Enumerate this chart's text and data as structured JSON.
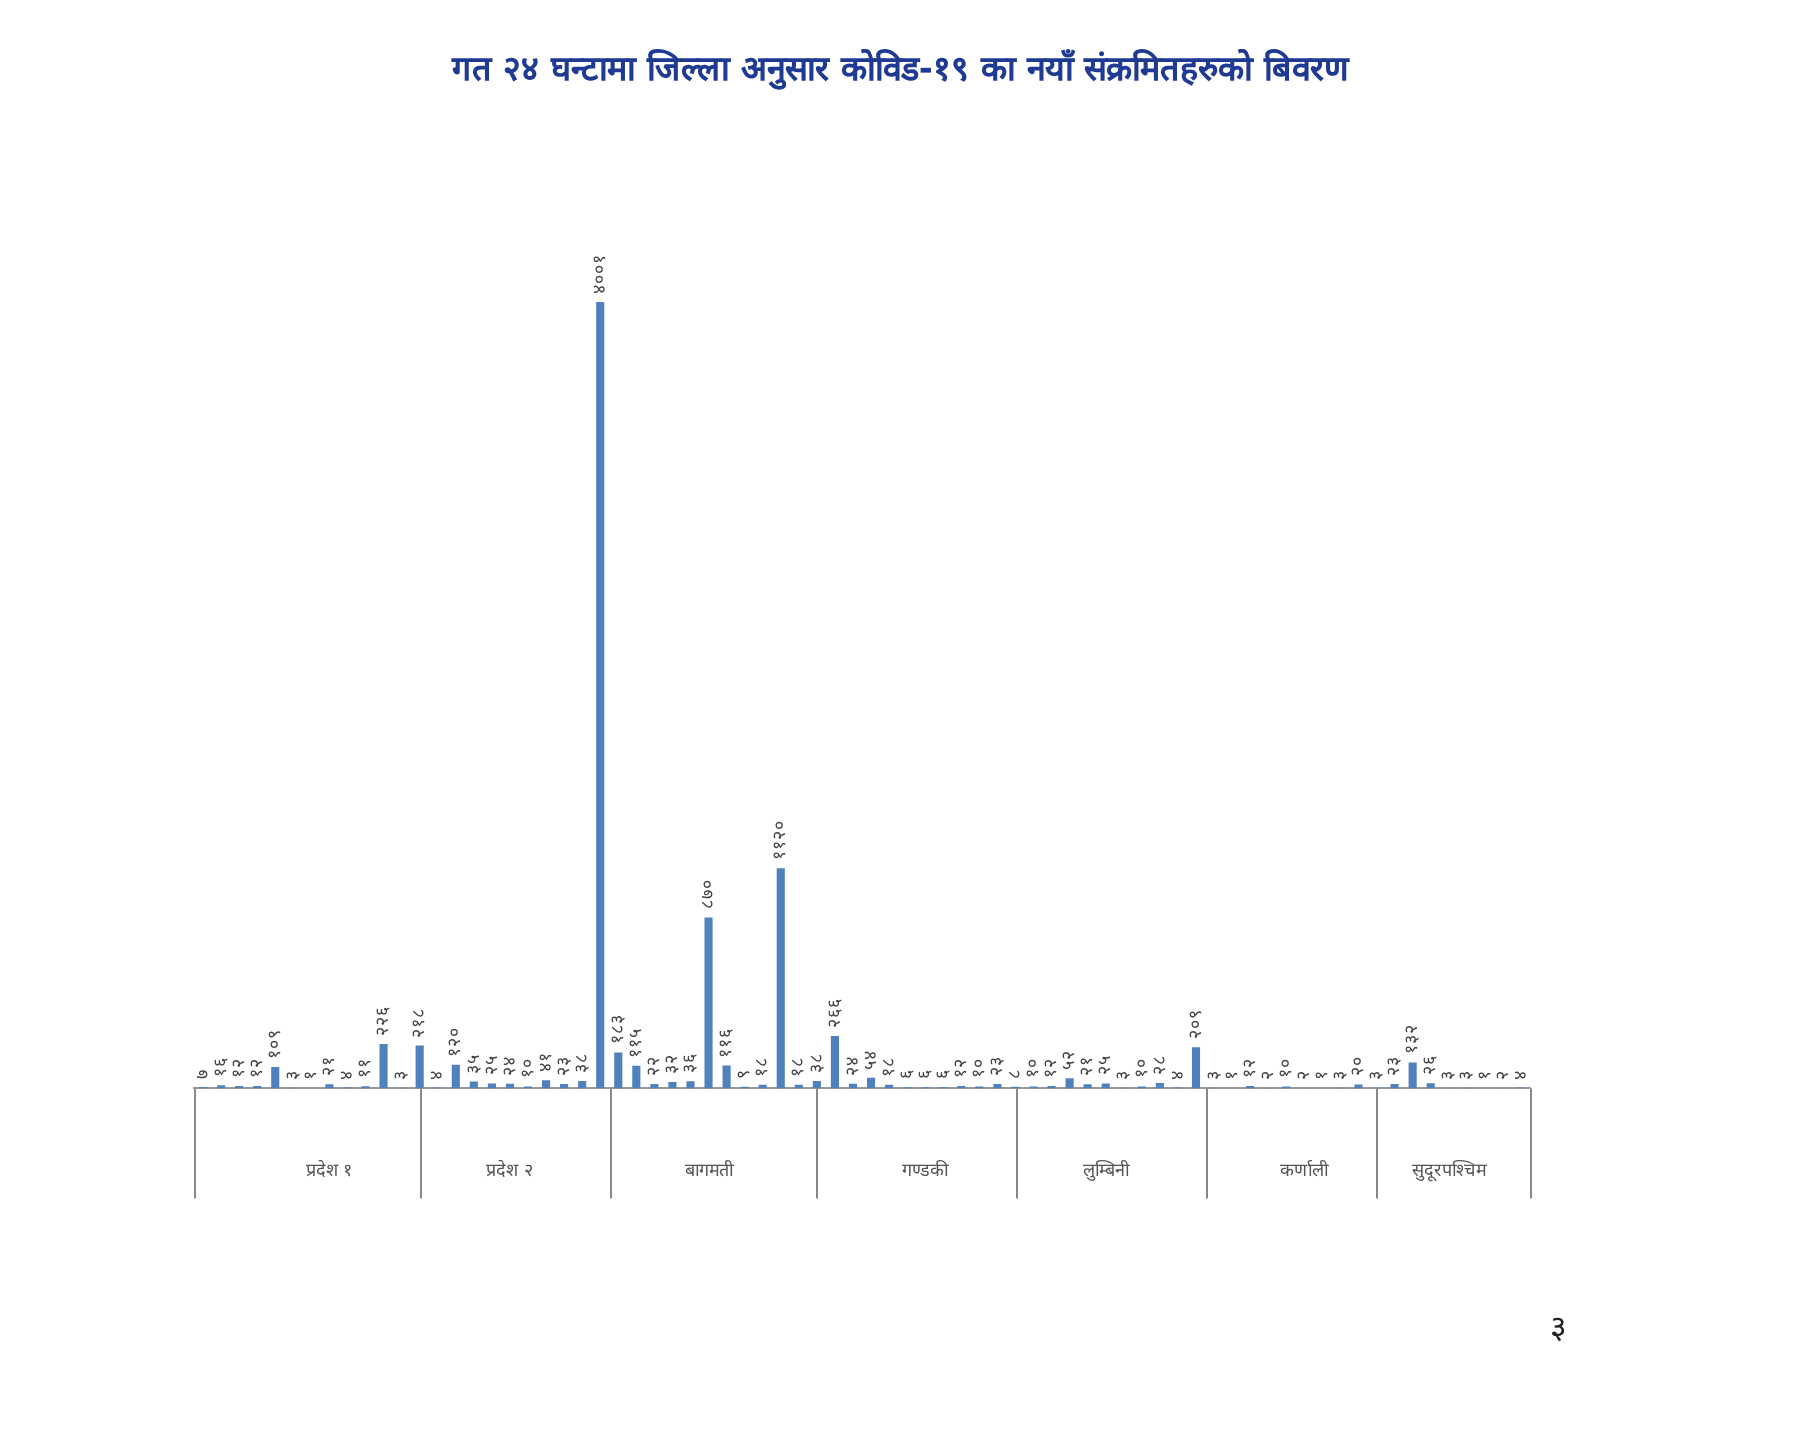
{
  "chart_data": {
    "type": "bar",
    "title": "गत २४ घन्टामा जिल्ला अनुसार कोविड-१९ का नयाँ संक्रमितहरुको बिवरण",
    "categories": [
      null,
      null,
      null,
      null,
      null,
      null,
      null,
      "प्रदेश १",
      null,
      null,
      null,
      null,
      null,
      null,
      null,
      null,
      null,
      "प्रदेश २",
      null,
      null,
      null,
      null,
      null,
      null,
      null,
      null,
      null,
      null,
      "बागमती",
      null,
      null,
      null,
      null,
      null,
      null,
      null,
      null,
      null,
      null,
      null,
      "गण्डकी",
      null,
      null,
      null,
      null,
      null,
      null,
      null,
      null,
      null,
      "लुम्बिनी",
      null,
      null,
      null,
      null,
      null,
      null,
      null,
      null,
      null,
      null,
      "कर्णाली",
      null,
      null,
      null,
      null,
      null,
      null,
      null,
      "सुदूरपश्चिम",
      null,
      null,
      null,
      null
    ],
    "values": [
      7,
      16,
      12,
      12,
      109,
      3,
      1,
      21,
      4,
      11,
      226,
      3,
      218,
      4,
      120,
      35,
      25,
      24,
      10,
      41,
      23,
      38,
      4001,
      183,
      115,
      22,
      32,
      36,
      870,
      116,
      9,
      18,
      1120,
      18,
      38,
      266,
      24,
      54,
      18,
      6,
      6,
      6,
      12,
      10,
      23,
      8,
      10,
      12,
      52,
      21,
      25,
      3,
      10,
      28,
      4,
      209,
      3,
      1,
      12,
      2,
      10,
      2,
      1,
      3,
      20,
      3,
      23,
      132,
      26,
      3,
      3,
      1,
      2,
      4
    ],
    "value_labels": [
      "७",
      "१६",
      "१२",
      "१२",
      "१०९",
      "३",
      "१",
      "२१",
      "४",
      "११",
      "२२६",
      "३",
      "२१८",
      "४",
      "१२०",
      "३५",
      "२५",
      "२४",
      "१०",
      "४१",
      "२३",
      "३८",
      "४००१",
      "१८३",
      "११५",
      "२२",
      "३२",
      "३६",
      "८७०",
      "११६",
      "९",
      "१८",
      "११२०",
      "१८",
      "३८",
      "२६६",
      "२४",
      "५४",
      "१८",
      "६",
      "६",
      "६",
      "१२",
      "१०",
      "२३",
      "८",
      "१०",
      "१२",
      "५२",
      "२१",
      "२५",
      "३",
      "१०",
      "२८",
      "४",
      "२०९",
      "३",
      "१",
      "१२",
      "२",
      "१०",
      "२",
      "१",
      "३",
      "२०",
      "३",
      "२३",
      "१३२",
      "२६",
      "३",
      "३",
      "१",
      "२",
      "४"
    ],
    "color": "#4f81bd",
    "legend": false,
    "annotations": [
      "३"
    ]
  }
}
